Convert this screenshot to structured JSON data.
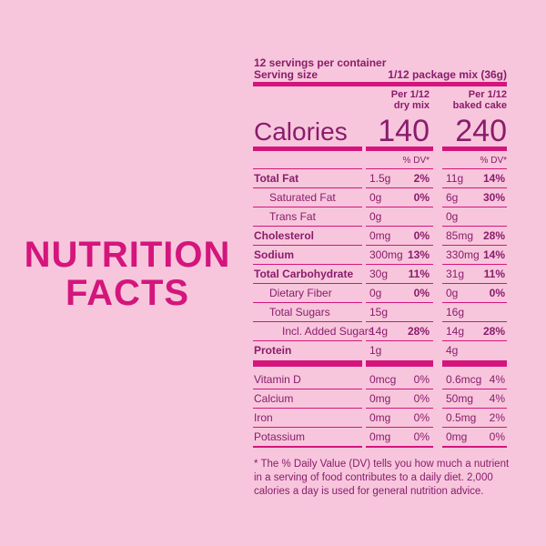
{
  "heading": [
    "NUTRITION",
    "FACTS"
  ],
  "servings": "12 servings per container",
  "serving_size": {
    "label": "Serving size",
    "value": "1/12 package mix (36g)"
  },
  "calories_label": "Calories",
  "columns": [
    {
      "header": [
        "Per 1/12",
        "dry mix"
      ],
      "calories": 140,
      "dv_header": "% DV*"
    },
    {
      "header": [
        "Per 1/12",
        "baked cake"
      ],
      "calories": 240,
      "dv_header": "% DV*"
    }
  ],
  "nutrients": [
    {
      "name": "Total Fat",
      "bold": true,
      "indent": 0,
      "dry": [
        "1.5g",
        "2%"
      ],
      "cake": [
        "11g",
        "14%"
      ]
    },
    {
      "name": "Saturated Fat",
      "bold": false,
      "indent": 1,
      "dry": [
        "0g",
        "0%"
      ],
      "cake": [
        "6g",
        "30%"
      ]
    },
    {
      "name": "Trans Fat",
      "bold": false,
      "indent": 1,
      "dry": [
        "0g"
      ],
      "cake": [
        "0g"
      ]
    },
    {
      "name": "Cholesterol",
      "bold": true,
      "indent": 0,
      "dry": [
        "0mg",
        "0%"
      ],
      "cake": [
        "85mg",
        "28%"
      ]
    },
    {
      "name": "Sodium",
      "bold": true,
      "indent": 0,
      "dry": [
        "300mg",
        "13%"
      ],
      "cake": [
        "330mg",
        "14%"
      ]
    },
    {
      "name": "Total Carbohydrate",
      "bold": true,
      "indent": 0,
      "dry": [
        "30g",
        "11%"
      ],
      "cake": [
        "31g",
        "11%"
      ]
    },
    {
      "name": "Dietary Fiber",
      "bold": false,
      "indent": 1,
      "dry": [
        "0g",
        "0%"
      ],
      "cake": [
        "0g",
        "0%"
      ]
    },
    {
      "name": "Total Sugars",
      "bold": false,
      "indent": 1,
      "dry": [
        "15g"
      ],
      "cake": [
        "16g"
      ]
    },
    {
      "name": "Incl. Added Sugars",
      "bold": false,
      "indent": 2,
      "dry": [
        "14g",
        "28%"
      ],
      "cake": [
        "14g",
        "28%"
      ]
    },
    {
      "name": "Protein",
      "bold": true,
      "indent": 0,
      "dry": [
        "1g"
      ],
      "cake": [
        "4g"
      ]
    }
  ],
  "micronutrients": [
    {
      "name": "Vitamin D",
      "dry": [
        "0mcg",
        "0%"
      ],
      "cake": [
        "0.6mcg",
        "4%"
      ]
    },
    {
      "name": "Calcium",
      "dry": [
        "0mg",
        "0%"
      ],
      "cake": [
        "50mg",
        "4%"
      ]
    },
    {
      "name": "Iron",
      "dry": [
        "0mg",
        "0%"
      ],
      "cake": [
        "0.5mg",
        "2%"
      ]
    },
    {
      "name": "Potassium",
      "dry": [
        "0mg",
        "0%"
      ],
      "cake": [
        "0mg",
        "0%"
      ]
    }
  ],
  "footnote": "* The % Daily Value (DV) tells you how much a nutrient in a serving of food contributes to a daily diet. 2,000 calories a day is used for general nutrition advice."
}
